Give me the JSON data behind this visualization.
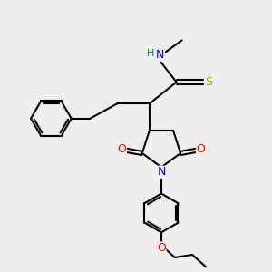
{
  "bg_color": "#eeeeee",
  "atom_colors": {
    "N": "#0000ff",
    "O": "#ff0000",
    "S": "#aaaa00",
    "C": "#000000",
    "H": "#008080"
  },
  "bond_color": "#000000",
  "bond_width": 1.5,
  "font_size_atom": 9
}
